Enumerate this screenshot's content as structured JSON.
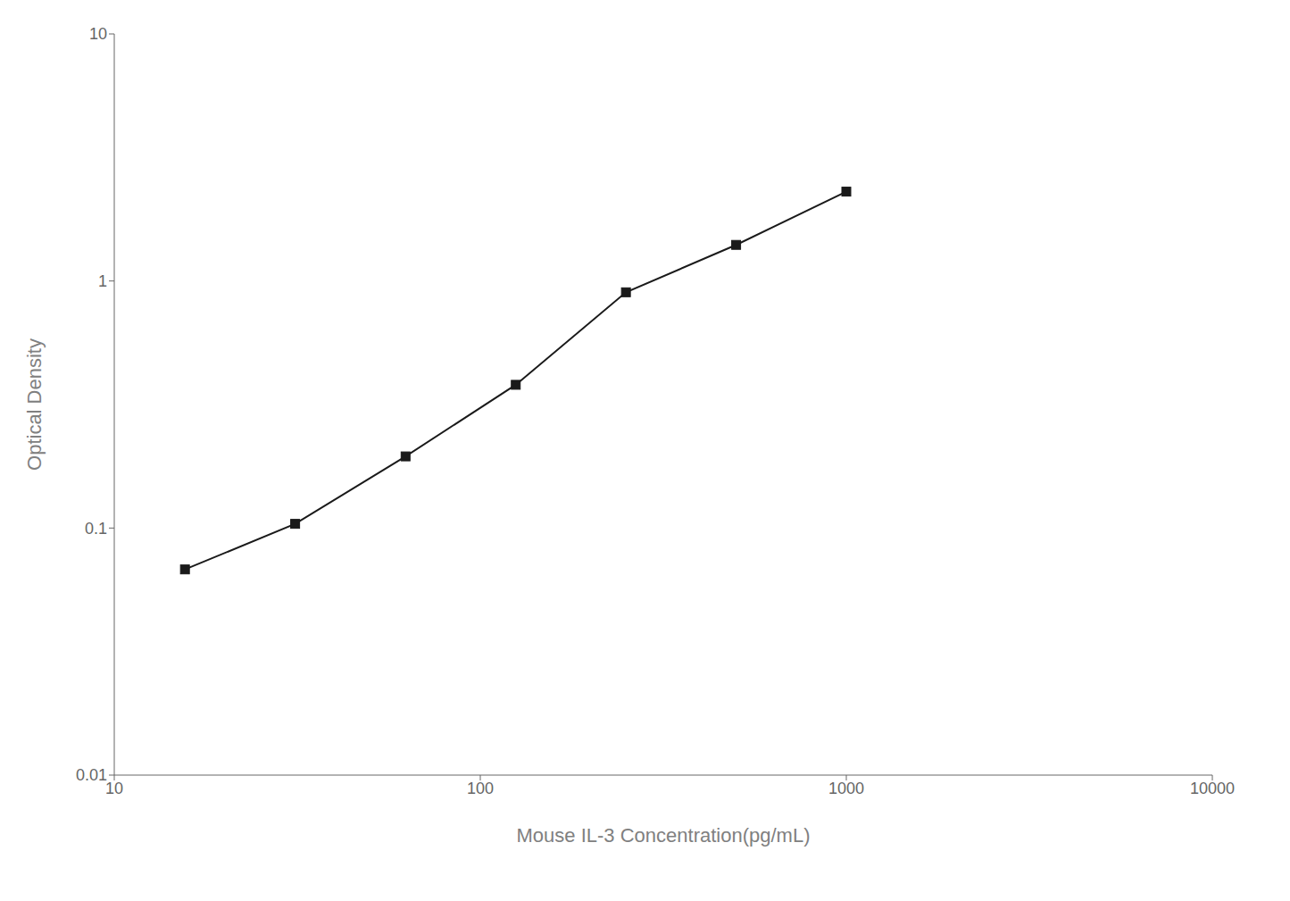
{
  "chart_data": {
    "type": "line",
    "x": [
      15.6,
      31.2,
      62.5,
      125,
      250,
      500,
      1000
    ],
    "values": [
      0.068,
      0.104,
      0.195,
      0.38,
      0.9,
      1.4,
      2.3
    ],
    "xlabel": "Mouse IL-3 Concentration(pg/mL)",
    "ylabel": "Optical Density",
    "xlim": [
      10,
      10000
    ],
    "ylim": [
      0.01,
      10
    ],
    "xticks": [
      10,
      100,
      1000,
      10000
    ],
    "yticks": [
      0.01,
      0.1,
      1,
      10
    ],
    "log": true,
    "color": "#1a1a1a",
    "marker": "square",
    "grid": false
  }
}
